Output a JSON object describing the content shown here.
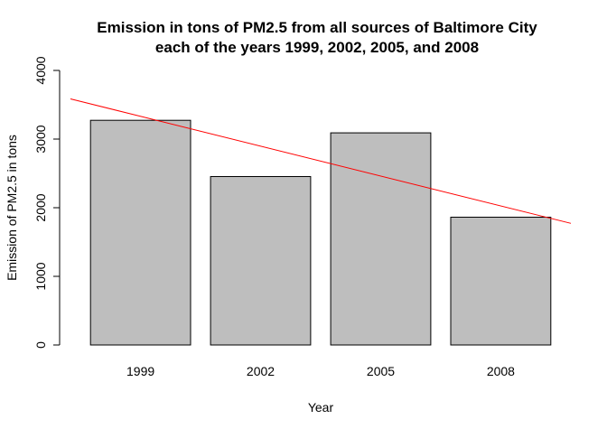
{
  "chart_data": {
    "type": "bar",
    "title": "Emission in tons of PM2.5 from all sources of Baltimore City",
    "subtitle": "each of the years 1999, 2002, 2005, and 2008",
    "xlabel": "Year",
    "ylabel": "Emission of PM2.5 in tons",
    "categories": [
      "1999",
      "2002",
      "2005",
      "2008"
    ],
    "values": [
      3274,
      2454,
      3091,
      1862
    ],
    "ylim": [
      0,
      4000
    ],
    "y_ticks": [
      "0",
      "1000",
      "2000",
      "3000",
      "4000"
    ],
    "grid": false,
    "bar_color": "#bebebe",
    "bar_border_color": "#000000",
    "trend_line": {
      "color": "#ff0000",
      "start_value": 3585,
      "end_value": 1772
    }
  }
}
